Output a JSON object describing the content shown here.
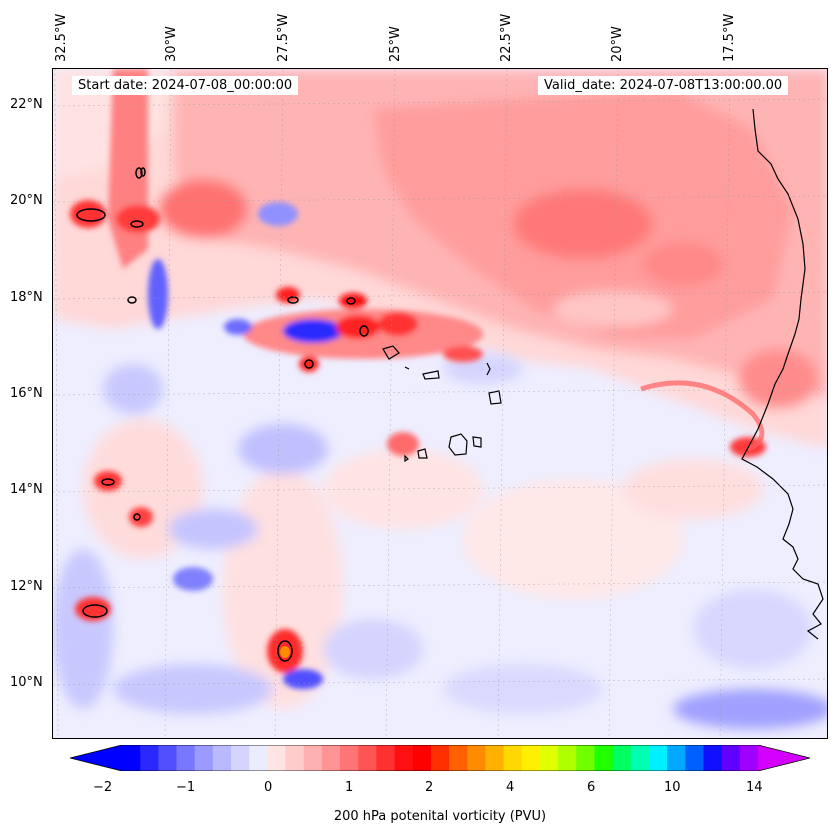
{
  "header": {
    "start_date": "Start date: 2024-07-08_00:00:00",
    "valid_date": "Valid_date: 2024-07-08T13:00:00.00"
  },
  "axes": {
    "longitudes": [
      "32.5°W",
      "30°W",
      "27.5°W",
      "25°W",
      "22.5°W",
      "20°W",
      "17.5°W"
    ],
    "latitudes": [
      "22°N",
      "20°N",
      "18°N",
      "16°N",
      "14°N",
      "12°N",
      "10°N"
    ]
  },
  "colorbar": {
    "label": "200 hPa potenital vorticity (PVU)",
    "ticks": [
      "−2",
      "−1",
      "0",
      "1",
      "2",
      "4",
      "6",
      "10",
      "14"
    ],
    "colors": [
      "#0000ff",
      "#2828ff",
      "#5050ff",
      "#7878ff",
      "#9b9bff",
      "#b9b9ff",
      "#d4d4ff",
      "#ececff",
      "#ffe4e4",
      "#ffcccc",
      "#ffb0b0",
      "#ff9494",
      "#ff7474",
      "#ff5454",
      "#ff3030",
      "#ff1010",
      "#ff0000",
      "#ff3000",
      "#ff6000",
      "#ff8c00",
      "#ffb000",
      "#ffd800",
      "#fff000",
      "#e0ff00",
      "#b0ff00",
      "#70ff00",
      "#20ff00",
      "#00ff60",
      "#00ffb0",
      "#00f0ff",
      "#00a8ff",
      "#0060ff",
      "#1010ff",
      "#6000ff",
      "#a000ff"
    ],
    "min_color": "#0000ff",
    "max_color": "#d400ff"
  },
  "map": {
    "ocean_color": "#eeeeff",
    "coast_color": "#000000"
  }
}
